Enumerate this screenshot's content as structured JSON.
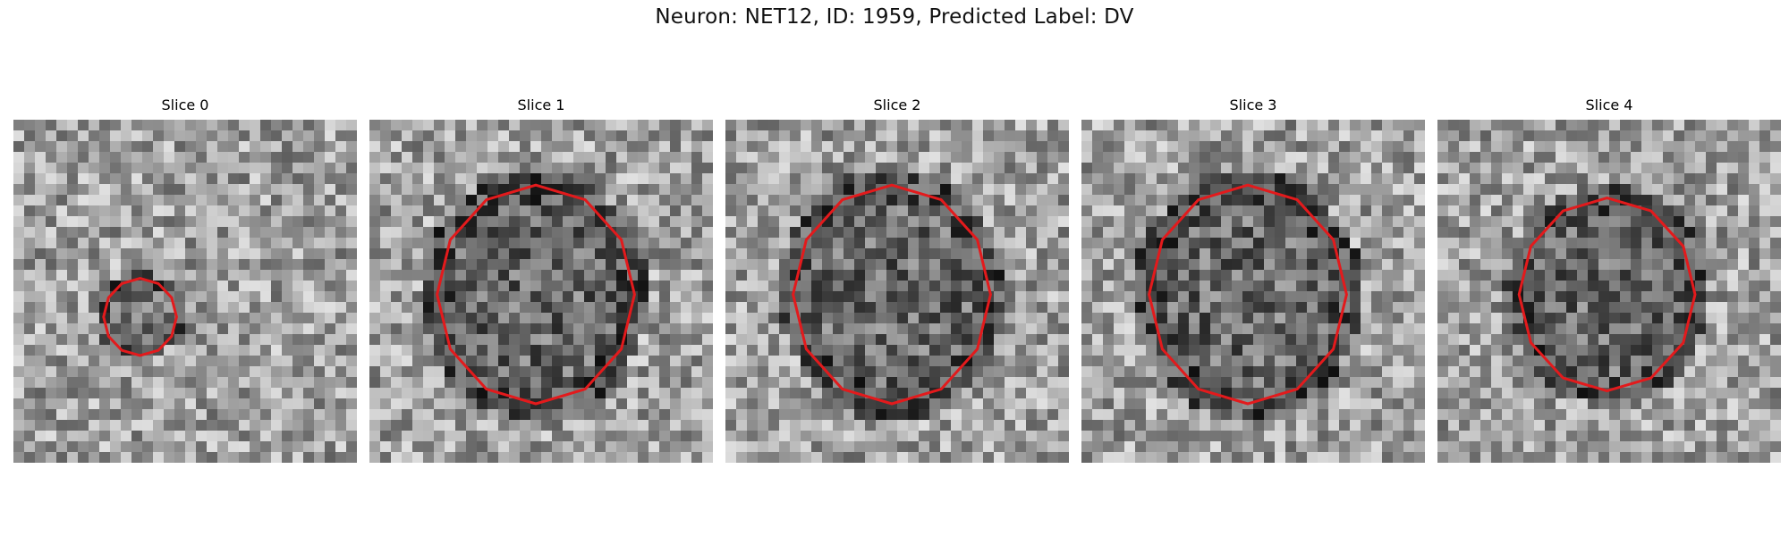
{
  "figure": {
    "title": "Neuron: NET12, ID: 1959, Predicted Label: DV"
  },
  "panels": [
    {
      "title": "Slice 0",
      "region": "small",
      "seed": 11
    },
    {
      "title": "Slice 1",
      "region": "large",
      "seed": 23
    },
    {
      "title": "Slice 2",
      "region": "large",
      "seed": 37
    },
    {
      "title": "Slice 3",
      "region": "large",
      "seed": 41
    },
    {
      "title": "Slice 4",
      "region": "medium",
      "seed": 53
    }
  ],
  "colors": {
    "contour": "#e31a1c",
    "background": "#ffffff"
  }
}
